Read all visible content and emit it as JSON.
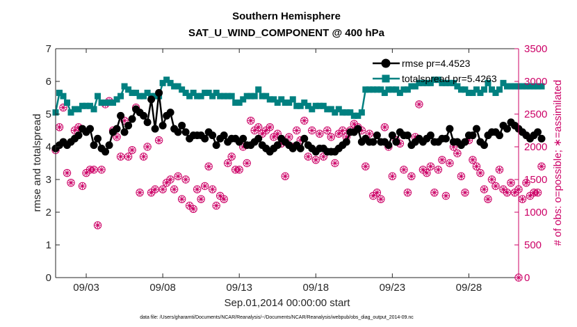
{
  "chart_data": {
    "type": "line",
    "title": "Southern Hemisphere",
    "subtitle": "SAT_U_WIND_COMPONENT @ 400 hPa",
    "xlabel": "Sep.01,2014 00:00:00 start",
    "ylabel": "rmse and totalspread",
    "ylabel_right": "# of obs: o=possible; ∗=assimilated",
    "footnote": "data file: /Users/gharamti/Documents/NCAR/Reanalysis/~/Documents/NCAR/Reanalysis/webpub/obs_diag_output_2014-09.nc",
    "xlim": [
      1.0,
      31.25
    ],
    "ylim": [
      0,
      7
    ],
    "ylim_right": [
      0,
      3500
    ],
    "x_tick_values": [
      3,
      8,
      13,
      18,
      23,
      28
    ],
    "x_tick_labels": [
      "09/03",
      "09/08",
      "09/13",
      "09/18",
      "09/23",
      "09/28"
    ],
    "y_ticks": [
      0,
      1,
      2,
      3,
      4,
      5,
      6,
      7
    ],
    "y_ticks_right": [
      0,
      500,
      1000,
      1500,
      2000,
      2500,
      3000,
      3500
    ],
    "x_unit": "day of September 2014 (1.0 = Sep.01 00:00)",
    "legend_position": "top-right",
    "colors": {
      "rmse": "#000000",
      "totalspread": "#008080",
      "obs": "#cc0066"
    },
    "x_start": 1.0,
    "x_step": 0.25,
    "series": [
      {
        "name": "rmse pr=4.4523",
        "axis": "left",
        "values": [
          3.95,
          4.05,
          4.15,
          4.05,
          4.15,
          4.25,
          4.35,
          4.55,
          4.45,
          4.55,
          4.05,
          4.25,
          3.95,
          3.85,
          4.05,
          4.45,
          4.55,
          4.95,
          4.45,
          4.65,
          4.85,
          5.15,
          5.05,
          4.95,
          4.75,
          5.45,
          4.55,
          5.65,
          4.65,
          4.95,
          5.05,
          4.55,
          4.45,
          4.65,
          4.45,
          4.25,
          4.35,
          4.35,
          4.35,
          4.25,
          4.45,
          4.35,
          4.05,
          4.25,
          4.35,
          4.15,
          4.25,
          4.25,
          4.15,
          4.25,
          4.05,
          4.05,
          4.15,
          4.25,
          4.05,
          3.95,
          3.85,
          3.95,
          4.05,
          4.25,
          4.15,
          4.05,
          3.95,
          4.05,
          3.95,
          4.25,
          4.05,
          3.95,
          3.85,
          3.95,
          3.95,
          3.85,
          3.85,
          3.85,
          3.95,
          4.05,
          4.15,
          4.45,
          4.45,
          4.55,
          4.15,
          4.25,
          4.15,
          4.15,
          4.35,
          4.15,
          4.15,
          4.05,
          4.35,
          4.15,
          4.45,
          4.35,
          4.35,
          4.05,
          4.15,
          4.25,
          4.15,
          4.25,
          4.35,
          4.15,
          4.15,
          4.25,
          4.25,
          4.55,
          4.15,
          4.15,
          4.05,
          4.15,
          4.35,
          4.35,
          4.55,
          4.15,
          4.05,
          4.35,
          4.45,
          4.45,
          4.35,
          4.65,
          4.55,
          4.75,
          4.65,
          4.55,
          4.45,
          4.35,
          4.25,
          4.35,
          4.45,
          4.25
        ],
        "marker": "circle"
      },
      {
        "name": "totalspread pr=5.4263",
        "axis": "left",
        "values": [
          5.05,
          5.65,
          5.55,
          5.35,
          5.05,
          5.15,
          5.15,
          5.25,
          5.25,
          5.25,
          5.15,
          5.55,
          5.35,
          5.35,
          5.35,
          5.35,
          5.45,
          5.55,
          5.85,
          5.75,
          5.65,
          5.65,
          5.55,
          5.55,
          5.65,
          5.55,
          5.55,
          5.55,
          5.95,
          6.05,
          5.95,
          5.85,
          5.85,
          5.75,
          5.65,
          5.55,
          5.65,
          5.55,
          5.55,
          5.65,
          5.65,
          5.55,
          5.65,
          5.55,
          5.55,
          5.55,
          5.55,
          5.35,
          5.35,
          5.45,
          5.55,
          5.55,
          5.55,
          5.75,
          5.55,
          5.55,
          5.45,
          5.45,
          5.35,
          5.45,
          5.35,
          5.35,
          5.45,
          5.25,
          5.25,
          5.35,
          5.25,
          5.15,
          5.25,
          5.25,
          5.25,
          5.15,
          5.15,
          5.05,
          5.15,
          5.05,
          5.05,
          5.05,
          4.95,
          4.95,
          5.05,
          5.75,
          5.75,
          5.75,
          5.75,
          5.75,
          5.65,
          5.75,
          5.75,
          5.75,
          5.65,
          5.75,
          5.75,
          5.85,
          5.85,
          5.95,
          5.95,
          5.95,
          5.95,
          6.05,
          6.05,
          5.95,
          5.95,
          5.95,
          5.95,
          5.85,
          5.75,
          5.75,
          5.65,
          5.65,
          5.75,
          5.65,
          5.75,
          5.95,
          5.75,
          5.65,
          5.75,
          5.95,
          5.85,
          5.85,
          5.85,
          5.85,
          5.85,
          5.85,
          5.85,
          5.85,
          5.85,
          5.85
        ],
        "marker": "square"
      },
      {
        "name": "possible",
        "axis": "right",
        "marker": "open-circle",
        "values": [
          1950,
          2300,
          2600,
          1600,
          1450,
          2250,
          2300,
          1400,
          1600,
          1650,
          1650,
          800,
          1650,
          2650,
          2700,
          2250,
          2150,
          1850,
          2400,
          1850,
          1950,
          2600,
          1300,
          1850,
          2000,
          1300,
          1350,
          2100,
          1350,
          1450,
          1500,
          1350,
          1550,
          1200,
          1500,
          1100,
          1050,
          1350,
          1200,
          1400,
          1700,
          1350,
          1100,
          1250,
          1200,
          1750,
          1850,
          1650,
          1650,
          2000,
          1750,
          2400,
          2250,
          2300,
          2200,
          2250,
          2300,
          2150,
          2200,
          2050,
          1550,
          2150,
          2000,
          2250,
          2100,
          2400,
          1850,
          2250,
          1800,
          2200,
          1850,
          2250,
          2150,
          1750,
          2200,
          2250,
          2150,
          2250,
          2350,
          2300,
          2250,
          1700,
          2200,
          1250,
          1300,
          1200,
          2300,
          2000,
          1550,
          2100,
          2050,
          1650,
          1300,
          1550,
          2150,
          2650,
          1650,
          1600,
          1700,
          1300,
          1650,
          1800,
          1250,
          1750,
          2000,
          1900,
          1550,
          1300,
          2100,
          1800,
          1700,
          1600,
          1350,
          1200,
          1500,
          1400,
          1650,
          1350,
          1300,
          1450,
          1300,
          1350,
          1200,
          1450,
          1250,
          1300,
          1300,
          1700
        ],
        "values_tail": [
          0
        ]
      },
      {
        "name": "assimilated",
        "axis": "right",
        "marker": "asterisk",
        "same_as": "possible"
      }
    ]
  }
}
